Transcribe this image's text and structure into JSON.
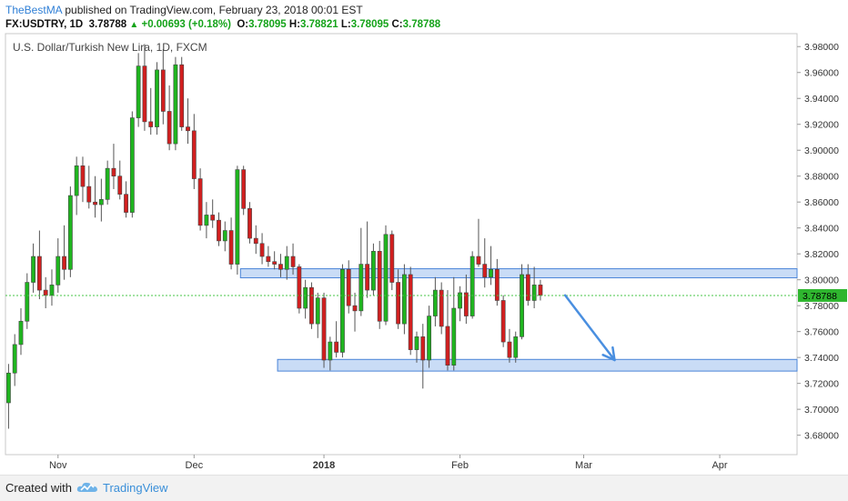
{
  "header": {
    "author": "TheBestMA",
    "published_text": " published on TradingView.com, February 23, 2018 00:01 EST",
    "symbol": "FX:USDTRY, 1D",
    "last": "3.78788",
    "change": "+0.00693 (+0.18%)",
    "o_label": "O:",
    "o_value": "3.78095",
    "h_label": "H:",
    "h_value": "3.78821",
    "l_label": "L:",
    "l_value": "3.78095",
    "c_label": "C:",
    "c_value": "3.78788"
  },
  "footer": {
    "created_with": "Created with",
    "brand": "TradingView"
  },
  "colors": {
    "up": "#1fb51f",
    "down": "#d11f1f",
    "zone_fill": "#b7d0f3",
    "zone_stroke": "#4a84d8",
    "arrow": "#4a8fe0",
    "last_price_bg": "#2fb62f",
    "last_price_line": "#47c447"
  },
  "chart_data": {
    "type": "candlestick",
    "title": "U.S. Dollar/Turkish New Lira, 1D, FXCM",
    "ylim": [
      3.665,
      3.99
    ],
    "y_ticks": [
      "3.68000",
      "3.70000",
      "3.72000",
      "3.74000",
      "3.76000",
      "3.78000",
      "3.80000",
      "3.82000",
      "3.84000",
      "3.86000",
      "3.88000",
      "3.90000",
      "3.92000",
      "3.94000",
      "3.96000",
      "3.98000"
    ],
    "x_ticks": [
      {
        "label": "Nov",
        "index": 8
      },
      {
        "label": "Dec",
        "index": 30
      },
      {
        "label": "2018",
        "index": 51
      },
      {
        "label": "Feb",
        "index": 73
      },
      {
        "label": "Mar",
        "index": 93
      },
      {
        "label": "Apr",
        "index": 115
      }
    ],
    "x_count": 128,
    "last_price": 3.78788,
    "last_price_label": "3.78788",
    "zones": [
      {
        "from_index": 38,
        "to_index": 127,
        "low": 3.8015,
        "high": 3.8085
      },
      {
        "from_index": 44,
        "to_index": 127,
        "low": 3.7295,
        "high": 3.7385
      }
    ],
    "projection_arrow": {
      "from_index": 90,
      "from": 3.788,
      "to_index": 98,
      "to": 3.738
    },
    "candles": [
      {
        "o": 3.705,
        "h": 3.735,
        "l": 3.685,
        "c": 3.728
      },
      {
        "o": 3.728,
        "h": 3.758,
        "l": 3.718,
        "c": 3.75
      },
      {
        "o": 3.75,
        "h": 3.778,
        "l": 3.742,
        "c": 3.768
      },
      {
        "o": 3.768,
        "h": 3.805,
        "l": 3.762,
        "c": 3.798
      },
      {
        "o": 3.798,
        "h": 3.828,
        "l": 3.79,
        "c": 3.818
      },
      {
        "o": 3.818,
        "h": 3.838,
        "l": 3.785,
        "c": 3.792
      },
      {
        "o": 3.792,
        "h": 3.802,
        "l": 3.778,
        "c": 3.788
      },
      {
        "o": 3.788,
        "h": 3.808,
        "l": 3.78,
        "c": 3.796
      },
      {
        "o": 3.796,
        "h": 3.832,
        "l": 3.79,
        "c": 3.818
      },
      {
        "o": 3.818,
        "h": 3.842,
        "l": 3.8,
        "c": 3.808
      },
      {
        "o": 3.808,
        "h": 3.872,
        "l": 3.802,
        "c": 3.865
      },
      {
        "o": 3.865,
        "h": 3.895,
        "l": 3.85,
        "c": 3.888
      },
      {
        "o": 3.888,
        "h": 3.895,
        "l": 3.86,
        "c": 3.872
      },
      {
        "o": 3.872,
        "h": 3.888,
        "l": 3.855,
        "c": 3.86
      },
      {
        "o": 3.86,
        "h": 3.88,
        "l": 3.848,
        "c": 3.858
      },
      {
        "o": 3.858,
        "h": 3.878,
        "l": 3.845,
        "c": 3.862
      },
      {
        "o": 3.862,
        "h": 3.892,
        "l": 3.858,
        "c": 3.886
      },
      {
        "o": 3.886,
        "h": 3.905,
        "l": 3.87,
        "c": 3.88
      },
      {
        "o": 3.88,
        "h": 3.892,
        "l": 3.862,
        "c": 3.866
      },
      {
        "o": 3.866,
        "h": 3.876,
        "l": 3.848,
        "c": 3.852
      },
      {
        "o": 3.852,
        "h": 3.93,
        "l": 3.848,
        "c": 3.925
      },
      {
        "o": 3.925,
        "h": 3.975,
        "l": 3.918,
        "c": 3.965
      },
      {
        "o": 3.965,
        "h": 3.982,
        "l": 3.915,
        "c": 3.922
      },
      {
        "o": 3.922,
        "h": 3.948,
        "l": 3.912,
        "c": 3.918
      },
      {
        "o": 3.918,
        "h": 3.968,
        "l": 3.912,
        "c": 3.962
      },
      {
        "o": 3.962,
        "h": 3.978,
        "l": 3.92,
        "c": 3.93
      },
      {
        "o": 3.93,
        "h": 3.95,
        "l": 3.9,
        "c": 3.905
      },
      {
        "o": 3.905,
        "h": 3.972,
        "l": 3.9,
        "c": 3.966
      },
      {
        "o": 3.966,
        "h": 3.972,
        "l": 3.915,
        "c": 3.918
      },
      {
        "o": 3.918,
        "h": 3.94,
        "l": 3.905,
        "c": 3.915
      },
      {
        "o": 3.915,
        "h": 3.928,
        "l": 3.87,
        "c": 3.878
      },
      {
        "o": 3.878,
        "h": 3.886,
        "l": 3.838,
        "c": 3.842
      },
      {
        "o": 3.842,
        "h": 3.86,
        "l": 3.832,
        "c": 3.85
      },
      {
        "o": 3.85,
        "h": 3.862,
        "l": 3.84,
        "c": 3.846
      },
      {
        "o": 3.846,
        "h": 3.852,
        "l": 3.826,
        "c": 3.83
      },
      {
        "o": 3.83,
        "h": 3.845,
        "l": 3.822,
        "c": 3.838
      },
      {
        "o": 3.838,
        "h": 3.848,
        "l": 3.808,
        "c": 3.812
      },
      {
        "o": 3.812,
        "h": 3.888,
        "l": 3.804,
        "c": 3.885
      },
      {
        "o": 3.885,
        "h": 3.888,
        "l": 3.85,
        "c": 3.855
      },
      {
        "o": 3.855,
        "h": 3.86,
        "l": 3.828,
        "c": 3.832
      },
      {
        "o": 3.832,
        "h": 3.842,
        "l": 3.82,
        "c": 3.828
      },
      {
        "o": 3.828,
        "h": 3.836,
        "l": 3.812,
        "c": 3.818
      },
      {
        "o": 3.818,
        "h": 3.826,
        "l": 3.81,
        "c": 3.814
      },
      {
        "o": 3.814,
        "h": 3.822,
        "l": 3.808,
        "c": 3.812
      },
      {
        "o": 3.812,
        "h": 3.82,
        "l": 3.802,
        "c": 3.808
      },
      {
        "o": 3.808,
        "h": 3.826,
        "l": 3.8,
        "c": 3.818
      },
      {
        "o": 3.818,
        "h": 3.828,
        "l": 3.804,
        "c": 3.81
      },
      {
        "o": 3.81,
        "h": 3.812,
        "l": 3.774,
        "c": 3.778
      },
      {
        "o": 3.778,
        "h": 3.8,
        "l": 3.77,
        "c": 3.794
      },
      {
        "o": 3.794,
        "h": 3.798,
        "l": 3.762,
        "c": 3.766
      },
      {
        "o": 3.766,
        "h": 3.79,
        "l": 3.755,
        "c": 3.786
      },
      {
        "o": 3.786,
        "h": 3.79,
        "l": 3.732,
        "c": 3.738
      },
      {
        "o": 3.738,
        "h": 3.756,
        "l": 3.73,
        "c": 3.752
      },
      {
        "o": 3.752,
        "h": 3.768,
        "l": 3.74,
        "c": 3.744
      },
      {
        "o": 3.744,
        "h": 3.812,
        "l": 3.74,
        "c": 3.808
      },
      {
        "o": 3.808,
        "h": 3.815,
        "l": 3.774,
        "c": 3.78
      },
      {
        "o": 3.78,
        "h": 3.79,
        "l": 3.76,
        "c": 3.776
      },
      {
        "o": 3.776,
        "h": 3.84,
        "l": 3.772,
        "c": 3.812
      },
      {
        "o": 3.812,
        "h": 3.845,
        "l": 3.786,
        "c": 3.792
      },
      {
        "o": 3.792,
        "h": 3.828,
        "l": 3.788,
        "c": 3.822
      },
      {
        "o": 3.822,
        "h": 3.83,
        "l": 3.762,
        "c": 3.768
      },
      {
        "o": 3.768,
        "h": 3.842,
        "l": 3.765,
        "c": 3.835
      },
      {
        "o": 3.835,
        "h": 3.838,
        "l": 3.792,
        "c": 3.798
      },
      {
        "o": 3.798,
        "h": 3.808,
        "l": 3.762,
        "c": 3.766
      },
      {
        "o": 3.766,
        "h": 3.812,
        "l": 3.758,
        "c": 3.804
      },
      {
        "o": 3.804,
        "h": 3.81,
        "l": 3.742,
        "c": 3.746
      },
      {
        "o": 3.746,
        "h": 3.76,
        "l": 3.736,
        "c": 3.756
      },
      {
        "o": 3.756,
        "h": 3.766,
        "l": 3.716,
        "c": 3.738
      },
      {
        "o": 3.738,
        "h": 3.78,
        "l": 3.732,
        "c": 3.772
      },
      {
        "o": 3.772,
        "h": 3.802,
        "l": 3.764,
        "c": 3.792
      },
      {
        "o": 3.792,
        "h": 3.798,
        "l": 3.758,
        "c": 3.764
      },
      {
        "o": 3.764,
        "h": 3.792,
        "l": 3.73,
        "c": 3.734
      },
      {
        "o": 3.734,
        "h": 3.802,
        "l": 3.73,
        "c": 3.778
      },
      {
        "o": 3.778,
        "h": 3.795,
        "l": 3.768,
        "c": 3.79
      },
      {
        "o": 3.79,
        "h": 3.804,
        "l": 3.766,
        "c": 3.772
      },
      {
        "o": 3.772,
        "h": 3.822,
        "l": 3.77,
        "c": 3.818
      },
      {
        "o": 3.818,
        "h": 3.847,
        "l": 3.81,
        "c": 3.812
      },
      {
        "o": 3.812,
        "h": 3.832,
        "l": 3.794,
        "c": 3.802
      },
      {
        "o": 3.802,
        "h": 3.826,
        "l": 3.796,
        "c": 3.808
      },
      {
        "o": 3.808,
        "h": 3.816,
        "l": 3.78,
        "c": 3.784
      },
      {
        "o": 3.784,
        "h": 3.788,
        "l": 3.748,
        "c": 3.752
      },
      {
        "o": 3.752,
        "h": 3.762,
        "l": 3.736,
        "c": 3.74
      },
      {
        "o": 3.74,
        "h": 3.76,
        "l": 3.736,
        "c": 3.756
      },
      {
        "o": 3.756,
        "h": 3.812,
        "l": 3.754,
        "c": 3.804
      },
      {
        "o": 3.804,
        "h": 3.812,
        "l": 3.78,
        "c": 3.784
      },
      {
        "o": 3.784,
        "h": 3.81,
        "l": 3.778,
        "c": 3.796
      },
      {
        "o": 3.796,
        "h": 3.8,
        "l": 3.784,
        "c": 3.788
      }
    ]
  }
}
